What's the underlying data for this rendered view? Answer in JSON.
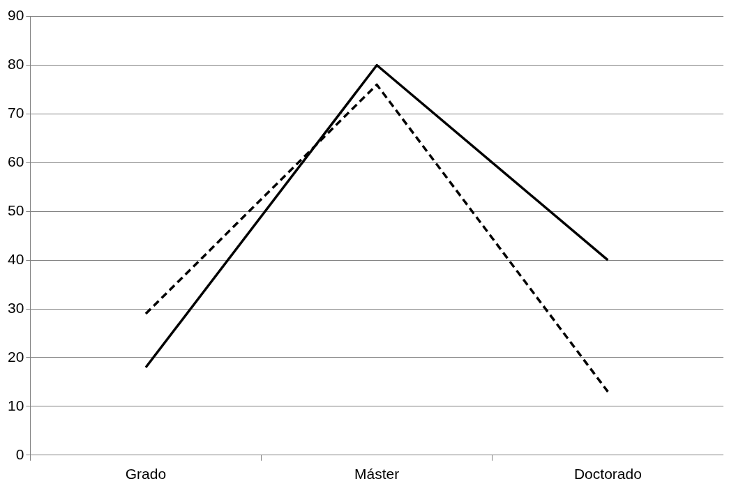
{
  "chart_data": {
    "type": "line",
    "categories": [
      "Grado",
      "Máster",
      "Doctorado"
    ],
    "series": [
      {
        "color": "#000000",
        "values": [
          18,
          80,
          40
        ],
        "line_style": "solid"
      },
      {
        "color": "#000000",
        "values": [
          29,
          76,
          13
        ],
        "line_style": "dashed"
      }
    ],
    "ylim": [
      0,
      90
    ],
    "yticks": [
      0,
      10,
      20,
      30,
      40,
      50,
      60,
      70,
      80,
      90
    ],
    "grid": "y",
    "legend": false,
    "marker": "none"
  }
}
